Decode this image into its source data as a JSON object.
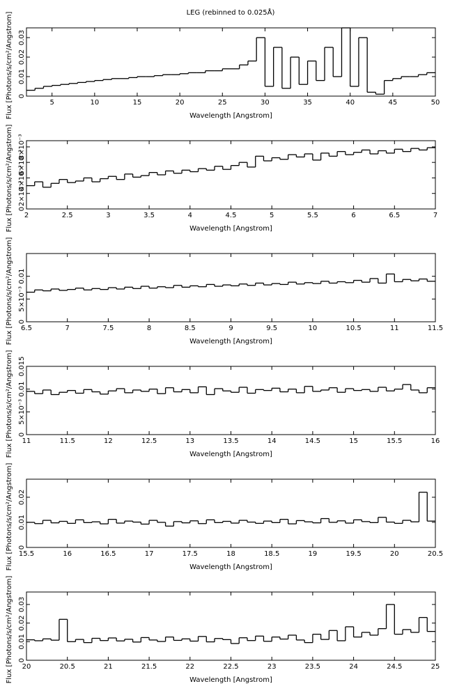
{
  "chart_data": [
    {
      "type": "histogram",
      "title": "LEG (rebinned to 0.025Å)",
      "xlabel": "Wavelength [Angstrom]",
      "ylabel": "Flux [Photons/s/cm²/Angstrom]",
      "xlim": [
        2,
        50
      ],
      "xticks": [
        5,
        10,
        15,
        20,
        25,
        30,
        35,
        40,
        45,
        50
      ],
      "ylim": [
        0,
        0.035
      ],
      "yticks": [
        0,
        0.01,
        0.02,
        0.03
      ],
      "color": "#000000",
      "bins": [
        2,
        3,
        4,
        5,
        6,
        7,
        8,
        9,
        10,
        11,
        12,
        13,
        14,
        15,
        16,
        17,
        18,
        19,
        20,
        21,
        22,
        23,
        24,
        25,
        26,
        27,
        28,
        29,
        30,
        31,
        32,
        33,
        34,
        35,
        36,
        37,
        38,
        39,
        40,
        41,
        42,
        43,
        44,
        45,
        46,
        47,
        48,
        49,
        50
      ],
      "values": [
        0.003,
        0.004,
        0.005,
        0.0055,
        0.006,
        0.0065,
        0.007,
        0.0075,
        0.008,
        0.0085,
        0.009,
        0.009,
        0.0095,
        0.01,
        0.01,
        0.0105,
        0.011,
        0.011,
        0.0115,
        0.012,
        0.012,
        0.013,
        0.013,
        0.014,
        0.014,
        0.016,
        0.018,
        0.03,
        0.005,
        0.025,
        0.004,
        0.02,
        0.006,
        0.018,
        0.008,
        0.025,
        0.01,
        0.035,
        0.005,
        0.03,
        0.002,
        0.001,
        0.008,
        0.009,
        0.01,
        0.01,
        0.011,
        0.012
      ]
    },
    {
      "type": "histogram",
      "xlabel": "Wavelength [Angstrom]",
      "ylabel": "Flux [Photons/s/cm²/Angstrom]",
      "xlim": [
        2,
        7
      ],
      "xticks": [
        2,
        2.5,
        3,
        3.5,
        4,
        4.5,
        5,
        5.5,
        6,
        6.5,
        7
      ],
      "ylim": [
        0,
        0.0088
      ],
      "yticks": [
        0,
        {
          "value": 0.002,
          "label": "2×10⁻³"
        },
        {
          "value": 0.004,
          "label": "4×10⁻³"
        },
        {
          "value": 0.006,
          "label": "6×10⁻³"
        },
        {
          "value": 0.008,
          "label": "8×10⁻³"
        }
      ],
      "color": "#000000",
      "bins": [
        2.0,
        2.1,
        2.2,
        2.3,
        2.4,
        2.5,
        2.6,
        2.7,
        2.8,
        2.9,
        3.0,
        3.1,
        3.2,
        3.3,
        3.4,
        3.5,
        3.6,
        3.7,
        3.8,
        3.9,
        4.0,
        4.1,
        4.2,
        4.3,
        4.4,
        4.5,
        4.6,
        4.7,
        4.8,
        4.9,
        5.0,
        5.1,
        5.2,
        5.3,
        5.4,
        5.5,
        5.6,
        5.7,
        5.8,
        5.9,
        6.0,
        6.1,
        6.2,
        6.3,
        6.4,
        6.5,
        6.6,
        6.7,
        6.8,
        6.9,
        7.0
      ],
      "values": [
        0.003,
        0.0035,
        0.0028,
        0.0033,
        0.0038,
        0.0034,
        0.0036,
        0.004,
        0.0035,
        0.0039,
        0.0042,
        0.0038,
        0.0045,
        0.0041,
        0.0043,
        0.0047,
        0.0044,
        0.0049,
        0.0046,
        0.005,
        0.0048,
        0.0052,
        0.005,
        0.0055,
        0.0051,
        0.0056,
        0.006,
        0.0054,
        0.0068,
        0.0062,
        0.0066,
        0.0064,
        0.007,
        0.0067,
        0.0071,
        0.0063,
        0.0072,
        0.0068,
        0.0074,
        0.007,
        0.0073,
        0.0076,
        0.0071,
        0.0075,
        0.0072,
        0.0077,
        0.0074,
        0.0078,
        0.0076,
        0.0079
      ]
    },
    {
      "type": "histogram",
      "xlabel": "Wavelength [Angstrom]",
      "ylabel": "Flux [Photons/s/cm²/Angstrom]",
      "xlim": [
        6.5,
        11.5
      ],
      "xticks": [
        6.5,
        7,
        7.5,
        8,
        8.5,
        9,
        9.5,
        10,
        10.5,
        11,
        11.5
      ],
      "ylim": [
        0,
        0.015
      ],
      "yticks": [
        0,
        {
          "value": 0.005,
          "label": "5×10⁻³"
        },
        0.01
      ],
      "color": "#000000",
      "bins": [
        6.5,
        6.6,
        6.7,
        6.8,
        6.9,
        7.0,
        7.1,
        7.2,
        7.3,
        7.4,
        7.5,
        7.6,
        7.7,
        7.8,
        7.9,
        8.0,
        8.1,
        8.2,
        8.3,
        8.4,
        8.5,
        8.6,
        8.7,
        8.8,
        8.9,
        9.0,
        9.1,
        9.2,
        9.3,
        9.4,
        9.5,
        9.6,
        9.7,
        9.8,
        9.9,
        10.0,
        10.1,
        10.2,
        10.3,
        10.4,
        10.5,
        10.6,
        10.7,
        10.8,
        10.9,
        11.0,
        11.1,
        11.2,
        11.3,
        11.4,
        11.5
      ],
      "values": [
        0.0065,
        0.007,
        0.0068,
        0.0072,
        0.0069,
        0.0071,
        0.0074,
        0.007,
        0.0073,
        0.0071,
        0.0075,
        0.0072,
        0.0076,
        0.0073,
        0.0078,
        0.0074,
        0.0077,
        0.0075,
        0.008,
        0.0076,
        0.0079,
        0.0077,
        0.0082,
        0.0078,
        0.0081,
        0.0079,
        0.0083,
        0.008,
        0.0085,
        0.0081,
        0.0084,
        0.0082,
        0.0087,
        0.0083,
        0.0086,
        0.0084,
        0.0089,
        0.0085,
        0.0088,
        0.0086,
        0.0091,
        0.0087,
        0.0095,
        0.0085,
        0.0105,
        0.0088,
        0.0093,
        0.009,
        0.0094,
        0.0089
      ]
    },
    {
      "type": "histogram",
      "xlabel": "Wavelength [Angstrom]",
      "ylabel": "Flux [Photons/s/cm²/Angstrom]",
      "xlim": [
        11,
        16
      ],
      "xticks": [
        11,
        11.5,
        12,
        12.5,
        13,
        13.5,
        14,
        14.5,
        15,
        15.5,
        16
      ],
      "ylim": [
        0,
        0.015
      ],
      "yticks": [
        0,
        {
          "value": 0.005,
          "label": "5×10⁻³"
        },
        0.01,
        0.015
      ],
      "color": "#000000",
      "bins": [
        11.0,
        11.1,
        11.2,
        11.3,
        11.4,
        11.5,
        11.6,
        11.7,
        11.8,
        11.9,
        12.0,
        12.1,
        12.2,
        12.3,
        12.4,
        12.5,
        12.6,
        12.7,
        12.8,
        12.9,
        13.0,
        13.1,
        13.2,
        13.3,
        13.4,
        13.5,
        13.6,
        13.7,
        13.8,
        13.9,
        14.0,
        14.1,
        14.2,
        14.3,
        14.4,
        14.5,
        14.6,
        14.7,
        14.8,
        14.9,
        15.0,
        15.1,
        15.2,
        15.3,
        15.4,
        15.5,
        15.6,
        15.7,
        15.8,
        15.9,
        16.0
      ],
      "values": [
        0.0095,
        0.009,
        0.0098,
        0.0088,
        0.0093,
        0.0097,
        0.0091,
        0.0099,
        0.0094,
        0.0089,
        0.0096,
        0.0101,
        0.0092,
        0.0098,
        0.0095,
        0.01,
        0.009,
        0.0103,
        0.0094,
        0.0099,
        0.0092,
        0.0105,
        0.0088,
        0.0101,
        0.0096,
        0.0093,
        0.0104,
        0.0091,
        0.0099,
        0.0097,
        0.0102,
        0.0094,
        0.01,
        0.0092,
        0.0106,
        0.0095,
        0.0098,
        0.0103,
        0.0093,
        0.0101,
        0.0097,
        0.0099,
        0.0095,
        0.0104,
        0.0096,
        0.01,
        0.011,
        0.0098,
        0.0092,
        0.0103
      ]
    },
    {
      "type": "histogram",
      "xlabel": "Wavelength [Angstrom]",
      "ylabel": "Flux [Photons/s/cm²/Angstrom]",
      "xlim": [
        15.5,
        20.5
      ],
      "xticks": [
        15.5,
        16,
        16.5,
        17,
        17.5,
        18,
        18.5,
        19,
        19.5,
        20,
        20.5
      ],
      "ylim": [
        0,
        0.0272
      ],
      "yticks": [
        0,
        0.01,
        0.02
      ],
      "color": "#000000",
      "bins": [
        15.5,
        15.6,
        15.7,
        15.8,
        15.9,
        16.0,
        16.1,
        16.2,
        16.3,
        16.4,
        16.5,
        16.6,
        16.7,
        16.8,
        16.9,
        17.0,
        17.1,
        17.2,
        17.3,
        17.4,
        17.5,
        17.6,
        17.7,
        17.8,
        17.9,
        18.0,
        18.1,
        18.2,
        18.3,
        18.4,
        18.5,
        18.6,
        18.7,
        18.8,
        18.9,
        19.0,
        19.1,
        19.2,
        19.3,
        19.4,
        19.5,
        19.6,
        19.7,
        19.8,
        19.9,
        20.0,
        20.1,
        20.2,
        20.3,
        20.4,
        20.5
      ],
      "values": [
        0.01,
        0.0095,
        0.0108,
        0.0098,
        0.0104,
        0.0096,
        0.011,
        0.0099,
        0.0102,
        0.0094,
        0.0112,
        0.0097,
        0.0105,
        0.0101,
        0.0093,
        0.0108,
        0.01,
        0.0085,
        0.0103,
        0.0098,
        0.0106,
        0.0095,
        0.011,
        0.0099,
        0.0104,
        0.0097,
        0.0108,
        0.0101,
        0.0096,
        0.0105,
        0.0099,
        0.0112,
        0.0094,
        0.0107,
        0.0102,
        0.0098,
        0.0115,
        0.01,
        0.0106,
        0.0097,
        0.011,
        0.0103,
        0.0099,
        0.012,
        0.0101,
        0.0096,
        0.0108,
        0.0102,
        0.022,
        0.0105
      ]
    },
    {
      "type": "histogram",
      "xlabel": "Wavelength [Angstrom]",
      "ylabel": "Flux [Photons/s/cm²/Angstrom]",
      "xlim": [
        20,
        25
      ],
      "xticks": [
        20,
        20.5,
        21,
        21.5,
        22,
        22.5,
        23,
        23.5,
        24,
        24.5,
        25
      ],
      "ylim": [
        0,
        0.0367
      ],
      "yticks": [
        0,
        0.01,
        0.02,
        0.03
      ],
      "color": "#000000",
      "bins": [
        20.0,
        20.1,
        20.2,
        20.3,
        20.4,
        20.5,
        20.6,
        20.7,
        20.8,
        20.9,
        21.0,
        21.1,
        21.2,
        21.3,
        21.4,
        21.5,
        21.6,
        21.7,
        21.8,
        21.9,
        22.0,
        22.1,
        22.2,
        22.3,
        22.4,
        22.5,
        22.6,
        22.7,
        22.8,
        22.9,
        23.0,
        23.1,
        23.2,
        23.3,
        23.4,
        23.5,
        23.6,
        23.7,
        23.8,
        23.9,
        24.0,
        24.1,
        24.2,
        24.3,
        24.4,
        24.5,
        24.6,
        24.7,
        24.8,
        24.9,
        25.0
      ],
      "values": [
        0.011,
        0.0105,
        0.0115,
        0.0108,
        0.022,
        0.01,
        0.0112,
        0.0095,
        0.0118,
        0.0106,
        0.012,
        0.0104,
        0.0113,
        0.0098,
        0.0122,
        0.0109,
        0.0101,
        0.0125,
        0.0107,
        0.0115,
        0.0103,
        0.0128,
        0.0099,
        0.0117,
        0.0111,
        0.009,
        0.0121,
        0.0106,
        0.013,
        0.0102,
        0.0125,
        0.0114,
        0.0135,
        0.0109,
        0.0095,
        0.014,
        0.0112,
        0.016,
        0.0105,
        0.018,
        0.0125,
        0.015,
        0.0135,
        0.017,
        0.03,
        0.014,
        0.0165,
        0.015,
        0.023,
        0.0155
      ]
    }
  ]
}
